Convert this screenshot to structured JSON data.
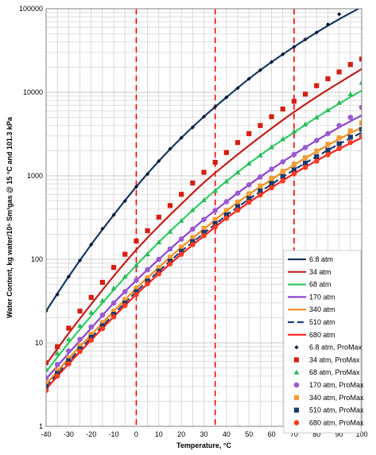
{
  "chart_data": {
    "type": "line",
    "xlabel": "Temperature, °C",
    "ylabel": "Water Content, kg water/10⁶ Sm³gas @ 15 °C and 101.3 kPa",
    "x_range": [
      -40,
      100
    ],
    "y_range": [
      1,
      100000
    ],
    "y_scale": "log",
    "x_ticks": [
      -40,
      -30,
      -20,
      -10,
      0,
      10,
      20,
      30,
      40,
      50,
      60,
      70,
      80,
      90,
      100
    ],
    "y_ticks": [
      1,
      10,
      100,
      1000,
      10000,
      100000
    ],
    "grid": true,
    "vertical_reference_lines": [
      0,
      35,
      70
    ],
    "reference_line_color": "#FF0000",
    "legend_position": "bottom-right",
    "series": [
      {
        "name": "6.8 atm",
        "kind": "line",
        "color": "#17375E",
        "x": [
          -40,
          -30,
          -20,
          -10,
          0,
          10,
          20,
          30,
          40,
          50,
          60,
          70,
          80,
          90,
          100
        ],
        "y": [
          24,
          62,
          150,
          340,
          740,
          1500,
          2850,
          5100,
          8700,
          14500,
          23000,
          35000,
          52000,
          75000,
          105000
        ]
      },
      {
        "name": "34 atm",
        "kind": "line",
        "color": "#C0201C",
        "x": [
          -40,
          -30,
          -20,
          -10,
          0,
          10,
          20,
          30,
          40,
          50,
          60,
          70,
          80,
          90,
          100
        ],
        "y": [
          5.5,
          13,
          29,
          63,
          130,
          250,
          460,
          830,
          1400,
          2300,
          3700,
          5800,
          8800,
          13000,
          19000
        ]
      },
      {
        "name": "68 atm",
        "kind": "line",
        "color": "#33CC66",
        "x": [
          -40,
          -30,
          -20,
          -10,
          0,
          10,
          20,
          30,
          40,
          50,
          60,
          70,
          80,
          90,
          100
        ],
        "y": [
          4.5,
          10,
          21,
          43,
          85,
          160,
          290,
          510,
          860,
          1400,
          2200,
          3300,
          5000,
          7300,
          10500
        ]
      },
      {
        "name": "170 atm",
        "kind": "line",
        "color": "#8E44C9",
        "x": [
          -40,
          -30,
          -20,
          -10,
          0,
          10,
          20,
          30,
          40,
          50,
          60,
          70,
          80,
          90,
          100
        ],
        "y": [
          3.7,
          7.5,
          15,
          30,
          56,
          100,
          175,
          300,
          490,
          780,
          1200,
          1800,
          2650,
          3800,
          5300
        ]
      },
      {
        "name": "340 atm",
        "kind": "line",
        "color": "#F08C1E",
        "x": [
          -40,
          -30,
          -20,
          -10,
          0,
          10,
          20,
          30,
          40,
          50,
          60,
          70,
          80,
          90,
          100
        ],
        "y": [
          3.2,
          6.5,
          12.5,
          24,
          45,
          80,
          140,
          230,
          380,
          600,
          900,
          1350,
          1950,
          2750,
          3800
        ]
      },
      {
        "name": "510 atm",
        "kind": "line",
        "dashed": true,
        "color": "#1F3F7A",
        "x": [
          -40,
          -30,
          -20,
          -10,
          0,
          10,
          20,
          30,
          40,
          50,
          60,
          70,
          80,
          90,
          100
        ],
        "y": [
          3.0,
          6.0,
          11.5,
          22,
          41,
          72,
          125,
          205,
          335,
          525,
          790,
          1180,
          1700,
          2400,
          3300
        ]
      },
      {
        "name": "680 atm",
        "kind": "line",
        "color": "#FF2020",
        "x": [
          -40,
          -30,
          -20,
          -10,
          0,
          10,
          20,
          30,
          40,
          50,
          60,
          70,
          80,
          90,
          100
        ],
        "y": [
          2.8,
          5.6,
          10.8,
          20.5,
          38,
          67,
          115,
          190,
          310,
          480,
          720,
          1060,
          1520,
          2100,
          2850
        ]
      },
      {
        "name": "6.8 atm, ProMax",
        "kind": "points",
        "marker": "diamond",
        "color": "#0A1A33",
        "x": [
          -40,
          -35,
          -30,
          -25,
          -20,
          -15,
          -10,
          -5,
          0,
          5,
          10,
          15,
          20,
          25,
          30,
          35,
          40,
          45,
          50,
          55,
          60,
          65,
          70,
          75,
          80,
          85,
          90
        ],
        "y": [
          24,
          38,
          62,
          97,
          150,
          232,
          340,
          500,
          740,
          1050,
          1500,
          2100,
          2850,
          3800,
          5100,
          6700,
          8700,
          11200,
          14500,
          18400,
          23000,
          28500,
          35000,
          43000,
          52000,
          65000,
          86000
        ]
      },
      {
        "name": "34 atm, ProMax",
        "kind": "points",
        "marker": "square",
        "color": "#D41F12",
        "x": [
          -40,
          -35,
          -30,
          -25,
          -20,
          -15,
          -10,
          -5,
          0,
          5,
          10,
          15,
          20,
          25,
          30,
          35,
          40,
          45,
          50,
          55,
          60,
          65,
          70,
          75,
          80,
          85,
          90,
          95,
          100
        ],
        "y": [
          5.8,
          9,
          15,
          24,
          35,
          53,
          80,
          115,
          165,
          220,
          320,
          440,
          600,
          820,
          1100,
          1450,
          1900,
          2500,
          3200,
          4000,
          5100,
          6300,
          7800,
          9500,
          12000,
          14500,
          17500,
          21500,
          25000
        ]
      },
      {
        "name": "68 atm, ProMax",
        "kind": "points",
        "marker": "triangle",
        "color": "#2EB85C",
        "x": [
          -40,
          -35,
          -30,
          -25,
          -20,
          -15,
          -10,
          -5,
          0,
          5,
          10,
          15,
          20,
          25,
          30,
          35,
          40,
          45,
          50,
          55,
          60,
          65,
          70,
          75,
          80,
          85,
          90,
          95,
          100
        ],
        "y": [
          4.8,
          7.5,
          11,
          16,
          23,
          32,
          45,
          62,
          85,
          115,
          160,
          215,
          290,
          390,
          510,
          665,
          860,
          1100,
          1400,
          1760,
          2200,
          2750,
          3400,
          4150,
          5000,
          6100,
          7500,
          9500,
          13000
        ]
      },
      {
        "name": "170 atm, ProMax",
        "kind": "points",
        "marker": "circle",
        "color": "#9B59D0",
        "x": [
          -40,
          -35,
          -30,
          -25,
          -20,
          -15,
          -10,
          -5,
          0,
          5,
          10,
          15,
          20,
          25,
          30,
          35,
          40,
          45,
          50,
          55,
          60,
          65,
          70,
          75,
          80,
          85,
          90,
          95,
          100
        ],
        "y": [
          3.8,
          5.5,
          8,
          11,
          15.5,
          21.5,
          30,
          41,
          56,
          75,
          100,
          133,
          175,
          230,
          300,
          385,
          490,
          620,
          780,
          970,
          1200,
          1470,
          1800,
          2180,
          2650,
          3200,
          4000,
          5000,
          6600
        ]
      },
      {
        "name": "340 atm, ProMax",
        "kind": "points",
        "marker": "square",
        "color": "#F39C33",
        "x": [
          -40,
          -35,
          -30,
          -25,
          -20,
          -15,
          -10,
          -5,
          0,
          5,
          10,
          15,
          20,
          25,
          30,
          35,
          40,
          45,
          50,
          55,
          60,
          65,
          70,
          75,
          80,
          85,
          90,
          95,
          100
        ],
        "y": [
          3.3,
          4.7,
          6.6,
          9.2,
          12.7,
          17.5,
          24,
          33,
          45,
          60,
          80,
          106,
          140,
          182,
          235,
          300,
          385,
          485,
          610,
          755,
          930,
          1130,
          1370,
          1650,
          1980,
          2380,
          2850,
          3450,
          4300
        ]
      },
      {
        "name": "510 atm, ProMax",
        "kind": "points",
        "marker": "square",
        "color": "#1B3A6B",
        "x": [
          -40,
          -35,
          -30,
          -25,
          -20,
          -15,
          -10,
          -5,
          0,
          5,
          10,
          15,
          20,
          25,
          30,
          35,
          40,
          45,
          50,
          55,
          60,
          65,
          70,
          75,
          80,
          85,
          90,
          95,
          100
        ],
        "y": [
          3.0,
          4.3,
          6.1,
          8.5,
          11.7,
          16,
          22,
          30,
          41,
          55,
          72,
          95,
          125,
          163,
          210,
          268,
          340,
          428,
          535,
          660,
          810,
          980,
          1180,
          1420,
          1700,
          2030,
          2420,
          2900,
          3600
        ]
      },
      {
        "name": "680 atm, ProMax",
        "kind": "points",
        "marker": "circle",
        "color": "#FF3B1F",
        "x": [
          -40,
          -35,
          -30,
          -25,
          -20,
          -15,
          -10,
          -5,
          0,
          5,
          10,
          15,
          20,
          25,
          30,
          35,
          40,
          45,
          50,
          55,
          60,
          65,
          70,
          75,
          80,
          85,
          90,
          95,
          100
        ],
        "y": [
          2.7,
          4.0,
          5.6,
          7.9,
          10.8,
          14.8,
          20.5,
          28,
          38,
          51,
          67,
          88,
          115,
          150,
          192,
          245,
          310,
          388,
          482,
          590,
          720,
          870,
          1060,
          1260,
          1500,
          1790,
          2120,
          2500,
          2950
        ]
      }
    ]
  }
}
